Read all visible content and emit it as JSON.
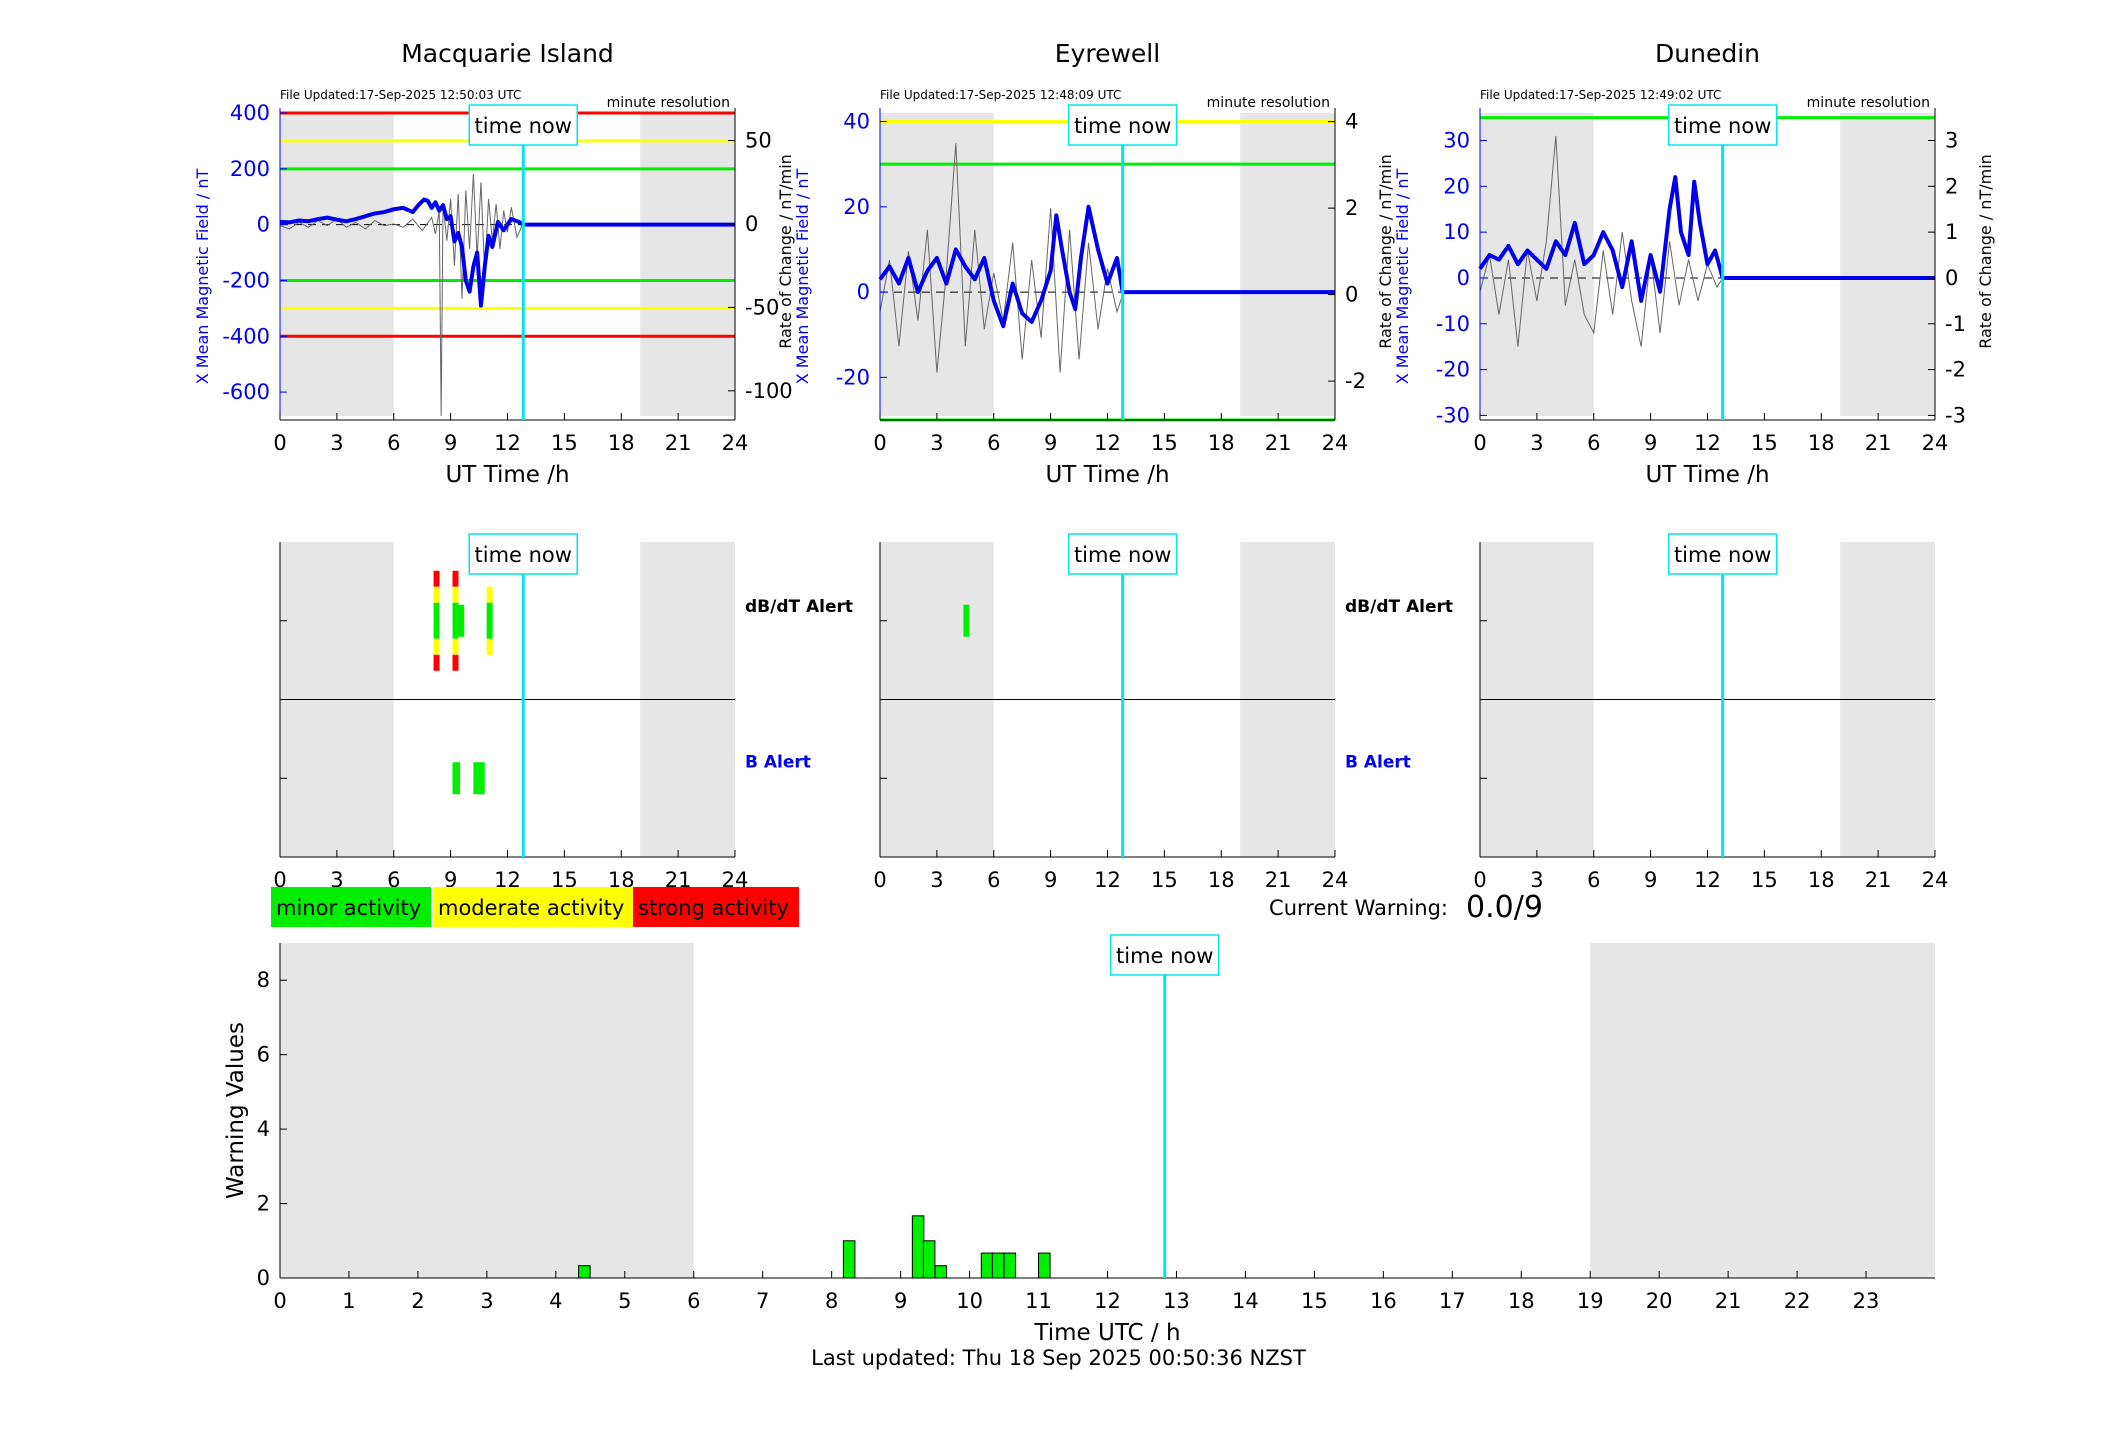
{
  "chart_data": [
    {
      "panel": "station-1",
      "type": "line",
      "title": "Macquarie Island",
      "file_updated": "File Updated:17-Sep-2025 12:50:03 UTC",
      "resolution": "minute resolution",
      "xlabel": "UT Time /h",
      "ylabel_left": "X Mean Magnetic Field / nT",
      "ylabel_right": "Rate of Change / nT/min",
      "xlim": [
        0,
        24
      ],
      "xticks": [
        0,
        3,
        6,
        9,
        12,
        15,
        18,
        21,
        24
      ],
      "ylim_left": [
        -700,
        400
      ],
      "yticks_left": [
        400,
        200,
        0,
        -200,
        -400,
        -600
      ],
      "ylim_right": [
        -117.5,
        66.5
      ],
      "yticks_right": [
        50,
        0,
        -50,
        -100
      ],
      "threshold_lines": [
        {
          "value": 400,
          "color": "#ff0000"
        },
        {
          "value": 300,
          "color": "#ffff00"
        },
        {
          "value": 200,
          "color": "#00ee00"
        },
        {
          "value": -200,
          "color": "#00ee00"
        },
        {
          "value": -300,
          "color": "#ffff00"
        },
        {
          "value": -400,
          "color": "#ff0000"
        }
      ],
      "shaded_hours": [
        [
          0,
          6
        ],
        [
          19,
          24
        ]
      ],
      "time_now_hour": 12.83,
      "time_now_label": "time now",
      "series": [
        {
          "role": "mean-field",
          "x": [
            0,
            0.5,
            1,
            1.5,
            2,
            2.5,
            3,
            3.5,
            4,
            4.5,
            5,
            5.5,
            6,
            6.5,
            7,
            7.3,
            7.6,
            7.8,
            8.0,
            8.2,
            8.4,
            8.6,
            8.8,
            9.0,
            9.2,
            9.4,
            9.6,
            9.8,
            10.0,
            10.2,
            10.4,
            10.6,
            10.8,
            11.0,
            11.2,
            11.5,
            11.8,
            12.2,
            12.6,
            12.83,
            24
          ],
          "y": [
            10,
            8,
            15,
            12,
            20,
            25,
            18,
            12,
            20,
            30,
            40,
            45,
            55,
            60,
            45,
            70,
            90,
            85,
            60,
            80,
            50,
            70,
            20,
            30,
            -60,
            -30,
            -80,
            -200,
            -240,
            -150,
            -100,
            -290,
            -150,
            -40,
            -80,
            10,
            -20,
            20,
            10,
            0,
            0
          ]
        },
        {
          "role": "rate-of-change",
          "x": [
            0,
            0.5,
            1,
            1.5,
            2,
            2.5,
            3,
            3.5,
            4,
            4.5,
            5,
            5.5,
            6,
            6.5,
            7,
            7.5,
            8.0,
            8.2,
            8.4,
            8.5,
            8.6,
            8.8,
            9.0,
            9.2,
            9.4,
            9.6,
            9.8,
            10.0,
            10.2,
            10.4,
            10.6,
            10.8,
            11.0,
            11.2,
            11.4,
            11.6,
            11.8,
            12.0,
            12.2,
            12.5,
            12.8
          ],
          "y": [
            -1,
            -3,
            1,
            -2,
            2,
            -1,
            3,
            -2,
            1,
            -3,
            2,
            -1,
            0,
            -2,
            3,
            -4,
            4,
            -6,
            8,
            -115,
            12,
            -10,
            15,
            -25,
            18,
            -45,
            20,
            -15,
            30,
            -20,
            25,
            -30,
            15,
            -10,
            12,
            -15,
            8,
            -5,
            10,
            -8,
            0
          ]
        }
      ]
    },
    {
      "panel": "station-2",
      "type": "line",
      "title": "Eyrewell",
      "file_updated": "File Updated:17-Sep-2025 12:48:09 UTC",
      "resolution": "minute resolution",
      "xlabel": "UT Time /h",
      "ylabel_left": "X Mean Magnetic Field / nT",
      "ylabel_right": "Rate of Change / nT/min",
      "xlim": [
        0,
        24
      ],
      "xticks": [
        0,
        3,
        6,
        9,
        12,
        15,
        18,
        21,
        24
      ],
      "ylim_left": [
        -30,
        42
      ],
      "yticks_left": [
        40,
        20,
        0,
        -20
      ],
      "ylim_right": [
        -2.9,
        4.2
      ],
      "yticks_right": [
        4,
        2,
        0,
        -2
      ],
      "threshold_lines": [
        {
          "value": 40,
          "color": "#ffff00"
        },
        {
          "value": 30,
          "color": "#00ee00"
        },
        {
          "value": -30,
          "color": "#00ee00"
        }
      ],
      "shaded_hours": [
        [
          0,
          6
        ],
        [
          19,
          24
        ]
      ],
      "time_now_hour": 12.8,
      "time_now_label": "time now",
      "series": [
        {
          "role": "mean-field",
          "x": [
            0,
            0.5,
            1,
            1.5,
            2,
            2.5,
            3,
            3.5,
            4,
            4.5,
            5,
            5.5,
            6,
            6.5,
            7,
            7.5,
            8,
            8.5,
            9,
            9.3,
            9.6,
            10,
            10.3,
            10.6,
            11,
            11.5,
            12,
            12.5,
            12.8,
            24
          ],
          "y": [
            3,
            6,
            2,
            8,
            0,
            5,
            8,
            2,
            10,
            6,
            3,
            8,
            -2,
            -8,
            2,
            -5,
            -7,
            -2,
            5,
            18,
            10,
            0,
            -4,
            8,
            20,
            10,
            2,
            8,
            0,
            0
          ]
        },
        {
          "role": "rate-of-change",
          "x": [
            0,
            0.5,
            1,
            1.5,
            2,
            2.5,
            3,
            3.5,
            4,
            4.5,
            5,
            5.5,
            6,
            6.5,
            7,
            7.5,
            8,
            8.5,
            9,
            9.5,
            10,
            10.5,
            11,
            11.5,
            12,
            12.5,
            12.8
          ],
          "y": [
            -0.4,
            0.8,
            -1.2,
            1.0,
            -0.6,
            1.5,
            -1.8,
            0.5,
            3.5,
            -1.2,
            1.5,
            -0.8,
            0.5,
            -0.6,
            1.2,
            -1.5,
            0.8,
            -1.0,
            2.0,
            -1.8,
            1.5,
            -1.5,
            1.2,
            -0.8,
            0.6,
            -0.4,
            0
          ]
        }
      ]
    },
    {
      "panel": "station-3",
      "type": "line",
      "title": "Dunedin",
      "file_updated": "File Updated:17-Sep-2025 12:49:02 UTC",
      "resolution": "minute resolution",
      "xlabel": "UT Time /h",
      "ylabel_left": "X Mean Magnetic Field / nT",
      "ylabel_right": "Rate of Change / nT/min",
      "xlim": [
        0,
        24
      ],
      "xticks": [
        0,
        3,
        6,
        9,
        12,
        15,
        18,
        21,
        24
      ],
      "ylim_left": [
        -31,
        36
      ],
      "yticks_left": [
        30,
        20,
        10,
        0,
        -10,
        -20,
        -30
      ],
      "ylim_right": [
        -3.1,
        3.6
      ],
      "yticks_right": [
        3,
        2,
        1,
        0,
        -1,
        -2,
        -3
      ],
      "threshold_lines": [
        {
          "value": 35,
          "color": "#00ee00"
        }
      ],
      "shaded_hours": [
        [
          0,
          6
        ],
        [
          19,
          24
        ]
      ],
      "time_now_hour": 12.8,
      "time_now_label": "time now",
      "series": [
        {
          "role": "mean-field",
          "x": [
            0,
            0.5,
            1,
            1.5,
            2,
            2.5,
            3,
            3.5,
            4,
            4.5,
            5,
            5.5,
            6,
            6.5,
            7,
            7.5,
            8,
            8.5,
            9,
            9.5,
            10,
            10.3,
            10.6,
            11,
            11.3,
            11.6,
            12,
            12.4,
            12.8,
            24
          ],
          "y": [
            2,
            5,
            4,
            7,
            3,
            6,
            4,
            2,
            8,
            5,
            12,
            3,
            5,
            10,
            6,
            -2,
            8,
            -5,
            5,
            -3,
            15,
            22,
            10,
            5,
            21,
            12,
            3,
            6,
            0,
            0
          ]
        },
        {
          "role": "rate-of-change",
          "x": [
            0,
            0.5,
            1,
            1.5,
            2,
            2.5,
            3,
            3.5,
            4,
            4.5,
            5,
            5.5,
            6,
            6.5,
            7,
            7.5,
            8,
            8.5,
            9,
            9.5,
            10,
            10.5,
            11,
            11.5,
            12,
            12.5,
            12.8
          ],
          "y": [
            -0.3,
            0.5,
            -0.8,
            0.4,
            -1.5,
            0.6,
            -0.5,
            0.8,
            3.1,
            -0.6,
            0.4,
            -0.8,
            -1.2,
            0.6,
            -0.8,
            1.0,
            -0.5,
            -1.5,
            0.5,
            -1.2,
            0.8,
            -0.6,
            0.4,
            -0.5,
            0.3,
            -0.2,
            0
          ]
        }
      ]
    },
    {
      "panel": "alert-1",
      "type": "bar",
      "xlim": [
        0,
        24
      ],
      "xticks": [
        0,
        3,
        6,
        9,
        12,
        15,
        18,
        21,
        24
      ],
      "row_labels": [
        "dB/dT Alert",
        "B Alert"
      ],
      "shaded_hours": [
        [
          0,
          6
        ],
        [
          19,
          24
        ]
      ],
      "time_now_hour": 12.83,
      "time_now_label": "time now",
      "alerts": [
        {
          "row": "dB/dT Alert",
          "start": 8.1,
          "end": 8.4,
          "level": 3
        },
        {
          "row": "dB/dT Alert",
          "start": 9.1,
          "end": 9.4,
          "level": 3
        },
        {
          "row": "dB/dT Alert",
          "start": 9.4,
          "end": 9.7,
          "level": 1
        },
        {
          "row": "dB/dT Alert",
          "start": 10.9,
          "end": 11.15,
          "level": 2
        },
        {
          "row": "B Alert",
          "start": 9.1,
          "end": 9.5,
          "level": 1
        },
        {
          "row": "B Alert",
          "start": 10.2,
          "end": 10.8,
          "level": 1
        }
      ]
    },
    {
      "panel": "alert-2",
      "type": "bar",
      "xlim": [
        0,
        24
      ],
      "xticks": [
        0,
        3,
        6,
        9,
        12,
        15,
        18,
        21,
        24
      ],
      "row_labels": [
        "dB/dT Alert",
        "B Alert"
      ],
      "shaded_hours": [
        [
          0,
          6
        ],
        [
          19,
          24
        ]
      ],
      "time_now_hour": 12.8,
      "time_now_label": "time now",
      "alerts": [
        {
          "row": "dB/dT Alert",
          "start": 4.4,
          "end": 4.7,
          "level": 1
        }
      ]
    },
    {
      "panel": "alert-3",
      "type": "bar",
      "xlim": [
        0,
        24
      ],
      "xticks": [
        0,
        3,
        6,
        9,
        12,
        15,
        18,
        21,
        24
      ],
      "shaded_hours": [
        [
          0,
          6
        ],
        [
          19,
          24
        ]
      ],
      "time_now_hour": 12.8,
      "time_now_label": "time now",
      "alerts": []
    },
    {
      "panel": "warning",
      "type": "bar",
      "xlabel": "Time UTC / h",
      "ylabel": "Warning Values",
      "xlim": [
        0,
        24
      ],
      "xticks": [
        0,
        1,
        2,
        3,
        4,
        5,
        6,
        7,
        8,
        9,
        10,
        11,
        12,
        13,
        14,
        15,
        16,
        17,
        18,
        19,
        20,
        21,
        22,
        23
      ],
      "ylim": [
        0,
        9
      ],
      "yticks": [
        0,
        2,
        4,
        6,
        8
      ],
      "shaded_hours": [
        [
          0,
          6
        ],
        [
          19,
          24
        ]
      ],
      "time_now_hour": 12.83,
      "time_now_label": "time now",
      "bin_width": 0.167,
      "bars": [
        {
          "x": 4.33,
          "value": 0.33
        },
        {
          "x": 8.17,
          "value": 1.0
        },
        {
          "x": 9.17,
          "value": 1.67
        },
        {
          "x": 9.33,
          "value": 1.0
        },
        {
          "x": 9.5,
          "value": 0.33
        },
        {
          "x": 10.17,
          "value": 0.67
        },
        {
          "x": 10.33,
          "value": 0.67
        },
        {
          "x": 10.5,
          "value": 0.67
        },
        {
          "x": 11.0,
          "value": 0.67
        }
      ]
    }
  ],
  "legend": {
    "items": [
      {
        "label": "minor activity",
        "color": "#00ee00"
      },
      {
        "label": "moderate activity",
        "color": "#ffff00"
      },
      {
        "label": "strong activity",
        "color": "#ff0000"
      }
    ]
  },
  "current_warning": {
    "label": "Current Warning:",
    "value": "0.0/9"
  },
  "last_updated": "Last updated: Thu 18 Sep 2025 00:50:36 NZST",
  "colors": {
    "mean_field": "#0000ee",
    "rate_of_change": "#666666",
    "time_now": "#00e5ee",
    "shade": "#e6e6e6",
    "axis_blue": "#0000ee"
  }
}
